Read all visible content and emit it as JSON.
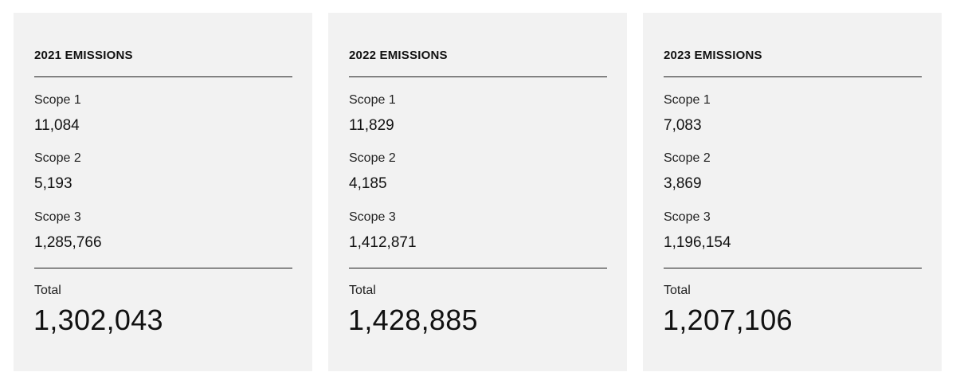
{
  "cards": [
    {
      "title": "2021 EMISSIONS",
      "scope1_label": "Scope 1",
      "scope1_value": "11,084",
      "scope2_label": "Scope 2",
      "scope2_value": "5,193",
      "scope3_label": "Scope 3",
      "scope3_value": "1,285,766",
      "total_label": "Total",
      "total_value": "1,302,043"
    },
    {
      "title": "2022 EMISSIONS",
      "scope1_label": "Scope 1",
      "scope1_value": "11,829",
      "scope2_label": "Scope 2",
      "scope2_value": "4,185",
      "scope3_label": "Scope 3",
      "scope3_value": "1,412,871",
      "total_label": "Total",
      "total_value": "1,428,885"
    },
    {
      "title": "2023 EMISSIONS",
      "scope1_label": "Scope 1",
      "scope1_value": "7,083",
      "scope2_label": "Scope 2",
      "scope2_value": "3,869",
      "scope3_label": "Scope 3",
      "scope3_value": "1,196,154",
      "total_label": "Total",
      "total_value": "1,207,106"
    }
  ],
  "colors": {
    "card_background": "#f2f2f2",
    "text": "#111111",
    "rule": "#1a1a1a"
  }
}
